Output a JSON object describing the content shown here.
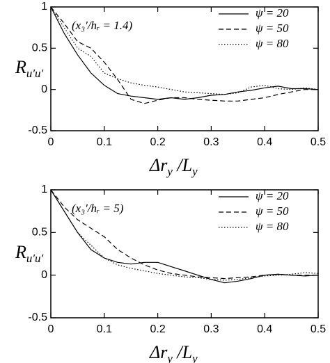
{
  "chart_data": [
    {
      "type": "line",
      "annotation": "(x₃′/hᵣ = 1.4)",
      "xlabel": [
        "Δr",
        "y",
        " /L",
        "y"
      ],
      "ylabel": [
        "R",
        "u′u′"
      ],
      "xlim": [
        0,
        0.5
      ],
      "ylim": [
        -0.5,
        1
      ],
      "xticks": [
        0,
        0.1,
        0.2,
        0.3,
        0.4,
        0.5
      ],
      "yticks": [
        -0.5,
        0,
        0.5,
        1
      ],
      "x": [
        0,
        0.025,
        0.05,
        0.075,
        0.1,
        0.125,
        0.15,
        0.175,
        0.2,
        0.225,
        0.25,
        0.275,
        0.3,
        0.325,
        0.35,
        0.375,
        0.4,
        0.425,
        0.45,
        0.475,
        0.5
      ],
      "series": [
        {
          "name": "ψ = 20",
          "color": "#000000",
          "style": "solid",
          "values": [
            1,
            0.68,
            0.42,
            0.2,
            0.05,
            -0.05,
            -0.08,
            -0.1,
            -0.12,
            -0.1,
            -0.12,
            -0.1,
            -0.07,
            -0.06,
            -0.03,
            -0.01,
            0.02,
            0.04,
            0.01,
            0.01,
            0
          ]
        },
        {
          "name": "ψ = 50",
          "color": "#000000",
          "style": "dashed",
          "values": [
            1,
            0.8,
            0.58,
            0.5,
            0.33,
            0.12,
            -0.12,
            -0.17,
            -0.13,
            -0.1,
            -0.1,
            -0.12,
            -0.13,
            -0.14,
            -0.14,
            -0.12,
            -0.1,
            -0.06,
            -0.03,
            0,
            0
          ]
        },
        {
          "name": "ψ = 80",
          "color": "#000000",
          "style": "dotted",
          "values": [
            1,
            0.75,
            0.5,
            0.4,
            0.2,
            0.13,
            0.08,
            0.05,
            0.03,
            0,
            -0.03,
            -0.04,
            -0.05,
            -0.06,
            -0.04,
            0.03,
            0.05,
            0.01,
            0,
            0.02,
            0
          ]
        }
      ]
    },
    {
      "type": "line",
      "annotation": "(x₃′/hᵣ = 5)",
      "xlabel": [
        "Δr",
        "y",
        " /L",
        "y"
      ],
      "ylabel": [
        "R",
        "u′u′"
      ],
      "xlim": [
        0,
        0.5
      ],
      "ylim": [
        -0.5,
        1
      ],
      "xticks": [
        0,
        0.1,
        0.2,
        0.3,
        0.4,
        0.5
      ],
      "yticks": [
        -0.5,
        0,
        0.5,
        1
      ],
      "x": [
        0,
        0.025,
        0.05,
        0.075,
        0.1,
        0.125,
        0.15,
        0.175,
        0.2,
        0.225,
        0.25,
        0.275,
        0.3,
        0.325,
        0.35,
        0.375,
        0.4,
        0.425,
        0.45,
        0.475,
        0.5
      ],
      "series": [
        {
          "name": "ψ = 20",
          "color": "#000000",
          "style": "solid",
          "values": [
            1,
            0.75,
            0.5,
            0.3,
            0.2,
            0.15,
            0.13,
            0.15,
            0.15,
            0.1,
            0.05,
            0,
            -0.05,
            -0.09,
            -0.07,
            -0.04,
            0,
            0.01,
            0,
            -0.01,
            0
          ]
        },
        {
          "name": "ψ = 50",
          "color": "#000000",
          "style": "dashed",
          "values": [
            1,
            0.8,
            0.65,
            0.55,
            0.45,
            0.3,
            0.2,
            0.12,
            0.06,
            0.02,
            0,
            -0.02,
            -0.03,
            -0.04,
            -0.03,
            -0.02,
            0,
            0.01,
            0,
            0,
            0
          ]
        },
        {
          "name": "ψ = 80",
          "color": "#000000",
          "style": "dotted",
          "values": [
            1,
            0.75,
            0.5,
            0.35,
            0.2,
            0.12,
            0.08,
            0.05,
            0.02,
            0,
            -0.02,
            -0.03,
            -0.05,
            -0.06,
            -0.05,
            -0.03,
            -0.01,
            0,
            0.01,
            0.03,
            0.02
          ]
        }
      ]
    }
  ]
}
